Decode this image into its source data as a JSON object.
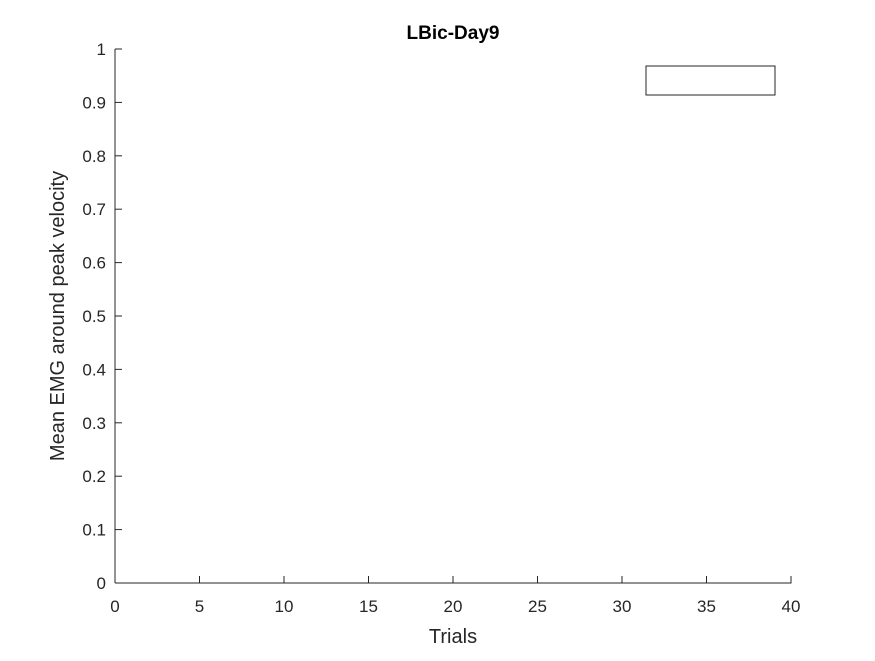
{
  "chart_data": {
    "type": "scatter",
    "title": "LBic-Day9",
    "xlabel": "Trials",
    "ylabel": "Mean EMG around peak velocity",
    "xlim": [
      0,
      40
    ],
    "ylim": [
      0,
      1
    ],
    "xticks": [
      0,
      5,
      10,
      15,
      20,
      25,
      30,
      35,
      40
    ],
    "xtick_labels": [
      "0",
      "5",
      "10",
      "15",
      "20",
      "25",
      "30",
      "35",
      "40"
    ],
    "yticks": [
      0,
      0.1,
      0.2,
      0.3,
      0.4,
      0.5,
      0.6,
      0.7,
      0.8,
      0.9,
      1
    ],
    "ytick_labels": [
      "0",
      "0.1",
      "0.2",
      "0.3",
      "0.4",
      "0.5",
      "0.6",
      "0.7",
      "0.8",
      "0.9",
      "1"
    ],
    "series": [],
    "legend": {
      "placement": "top-right",
      "entries": []
    },
    "grid": false
  }
}
